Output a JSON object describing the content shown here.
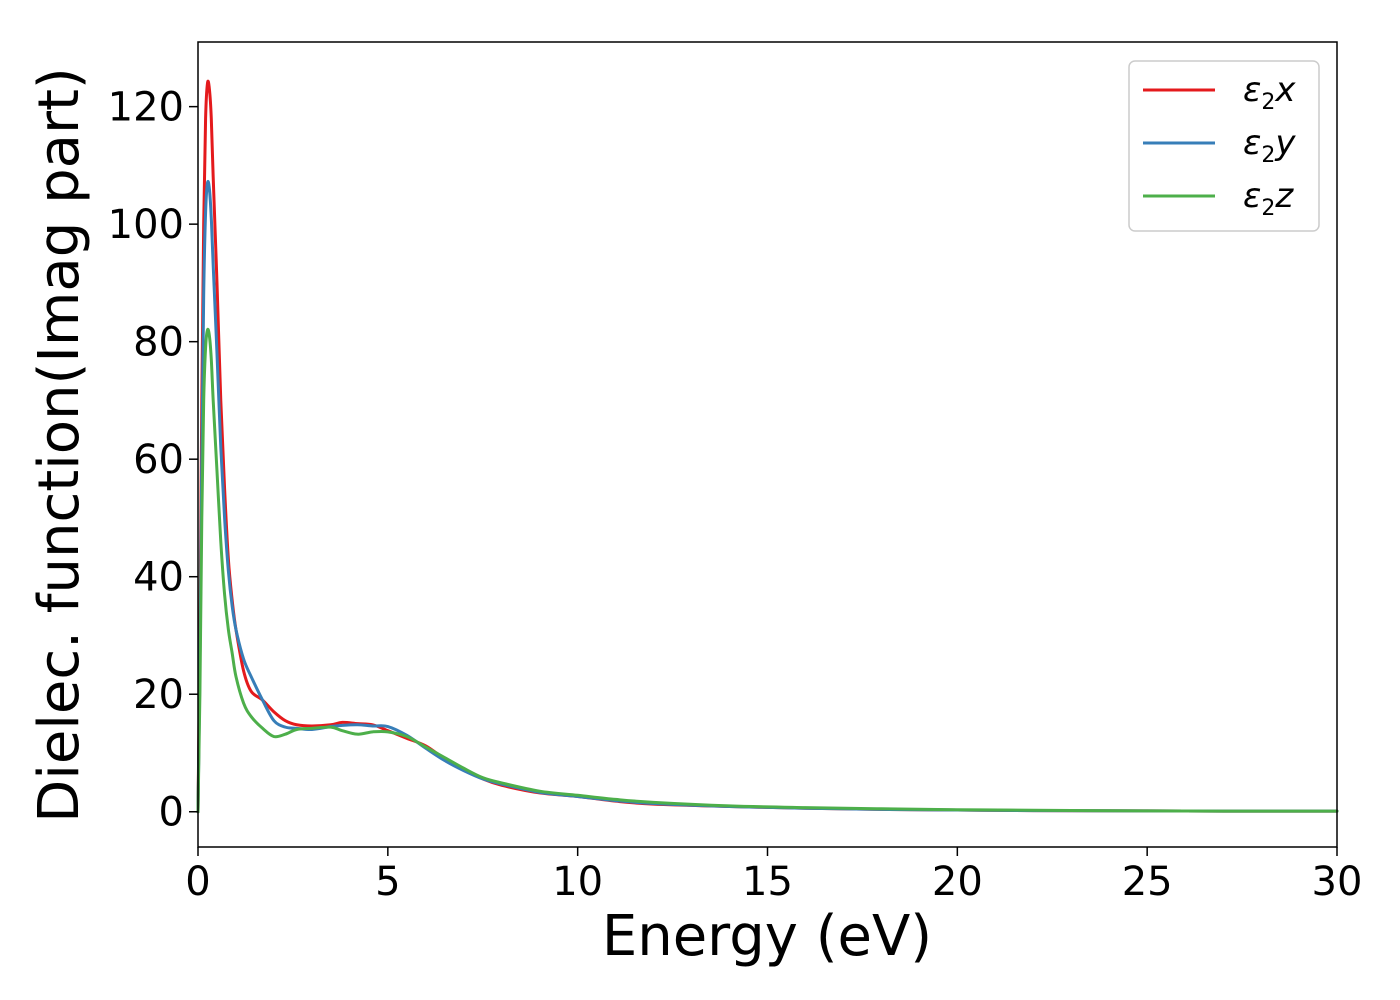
{
  "chart_data": {
    "type": "line",
    "title": "",
    "xlabel": "Energy (eV)",
    "ylabel": "Dielec. function(Imag part)",
    "xlim": [
      0,
      30
    ],
    "ylim": [
      -6,
      131
    ],
    "xticks": [
      0,
      5,
      10,
      15,
      20,
      25,
      30
    ],
    "yticks": [
      0,
      20,
      40,
      60,
      80,
      100,
      120
    ],
    "grid": false,
    "legend_position": "top-right",
    "series": [
      {
        "name": "ε2x",
        "legend_base": "ε",
        "legend_sub": "2",
        "legend_suffix": "x",
        "color": "#e41a1c",
        "x": [
          0,
          0.05,
          0.1,
          0.15,
          0.2,
          0.25,
          0.3,
          0.35,
          0.4,
          0.5,
          0.6,
          0.7,
          0.8,
          0.9,
          1.0,
          1.2,
          1.4,
          1.7,
          2.0,
          2.3,
          2.6,
          3.0,
          3.5,
          3.8,
          4.2,
          4.6,
          5.0,
          5.5,
          6.0,
          6.5,
          7.0,
          7.5,
          8.0,
          9.0,
          10.0,
          11.0,
          12.0,
          14.0,
          16.0,
          18.0,
          20.0,
          22.0,
          25.0,
          27.0,
          30.0
        ],
        "y": [
          0,
          30,
          70,
          100,
          118,
          124,
          123,
          118,
          108,
          90,
          70,
          55,
          43,
          36,
          31,
          24,
          20.5,
          19,
          17,
          15.5,
          14.8,
          14.6,
          14.8,
          15.2,
          15,
          14.8,
          13.8,
          12.5,
          11.2,
          9.0,
          7.2,
          5.6,
          4.5,
          3.2,
          2.6,
          1.8,
          1.3,
          0.9,
          0.6,
          0.4,
          0.3,
          0.2,
          0.15,
          0.1,
          0.1
        ]
      },
      {
        "name": "ε2y",
        "legend_base": "ε",
        "legend_sub": "2",
        "legend_suffix": "y",
        "color": "#377eb8",
        "x": [
          0,
          0.05,
          0.1,
          0.15,
          0.2,
          0.25,
          0.3,
          0.35,
          0.4,
          0.5,
          0.6,
          0.7,
          0.8,
          0.9,
          1.0,
          1.2,
          1.4,
          1.7,
          2.0,
          2.3,
          2.6,
          3.0,
          3.5,
          3.8,
          4.2,
          4.6,
          5.0,
          5.5,
          6.0,
          6.5,
          7.0,
          7.5,
          8.0,
          9.0,
          10.0,
          11.0,
          12.0,
          14.0,
          16.0,
          18.0,
          20.0,
          22.0,
          25.0,
          27.0,
          30.0
        ],
        "y": [
          0,
          25,
          60,
          88,
          102,
          107,
          106,
          101,
          93,
          78,
          62,
          50,
          41,
          35,
          31,
          26,
          23,
          19,
          15.5,
          14.4,
          14.2,
          14.0,
          14.5,
          14.7,
          14.8,
          14.6,
          14.5,
          13,
          10.8,
          8.7,
          7.0,
          5.6,
          4.7,
          3.3,
          2.6,
          1.9,
          1.4,
          0.9,
          0.6,
          0.4,
          0.3,
          0.2,
          0.15,
          0.1,
          0.1
        ]
      },
      {
        "name": "ε2z",
        "legend_base": "ε",
        "legend_sub": "2",
        "legend_suffix": "z",
        "color": "#4daf4a",
        "x": [
          0,
          0.05,
          0.1,
          0.15,
          0.2,
          0.25,
          0.3,
          0.35,
          0.4,
          0.5,
          0.6,
          0.7,
          0.8,
          0.9,
          1.0,
          1.2,
          1.4,
          1.7,
          2.0,
          2.3,
          2.6,
          3.0,
          3.5,
          3.8,
          4.2,
          4.6,
          5.0,
          5.5,
          6.0,
          6.5,
          7.0,
          7.5,
          8.0,
          9.0,
          10.0,
          11.0,
          12.0,
          14.0,
          16.0,
          18.0,
          20.0,
          22.0,
          25.0,
          27.0,
          30.0
        ],
        "y": [
          0,
          20,
          50,
          70,
          79,
          82,
          81,
          77,
          70,
          58,
          46,
          37,
          31,
          27,
          23,
          18.5,
          16.2,
          14.2,
          12.8,
          13.2,
          14.0,
          14.2,
          14.4,
          13.8,
          13.2,
          13.6,
          13.6,
          12.8,
          11,
          9.2,
          7.4,
          5.8,
          4.9,
          3.5,
          2.8,
          2.1,
          1.6,
          1.0,
          0.7,
          0.5,
          0.35,
          0.25,
          0.15,
          0.1,
          0.1
        ]
      }
    ]
  }
}
